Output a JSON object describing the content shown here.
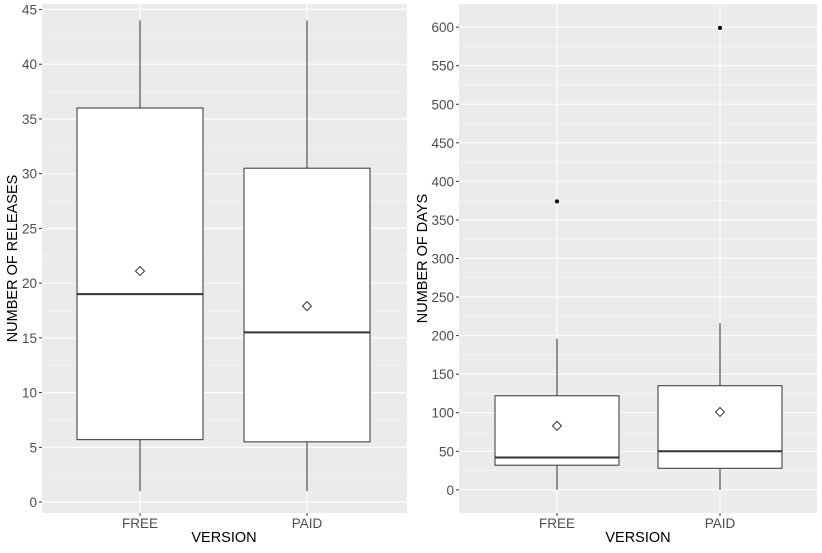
{
  "chart_data": [
    {
      "type": "boxplot",
      "xlabel": "VERSION",
      "ylabel": "NUMBER OF RELEASES",
      "ylim": [
        -1,
        45.5
      ],
      "yticks": [
        0,
        5,
        10,
        15,
        20,
        25,
        30,
        35,
        40,
        45
      ],
      "categories": [
        "FREE",
        "PAID"
      ],
      "boxes": [
        {
          "category": "FREE",
          "whisker_low": 1,
          "q1": 5.7,
          "median": 19,
          "q3": 36,
          "whisker_high": 44,
          "mean": 21.1,
          "outliers": []
        },
        {
          "category": "PAID",
          "whisker_low": 1,
          "q1": 5.5,
          "median": 15.5,
          "q3": 30.5,
          "whisker_high": 44,
          "mean": 17.9,
          "outliers": []
        }
      ],
      "grid": true
    },
    {
      "type": "boxplot",
      "xlabel": "VERSION",
      "ylabel": "NUMBER OF DAYS",
      "ylim": [
        -30,
        630
      ],
      "yticks": [
        0,
        50,
        100,
        150,
        200,
        250,
        300,
        350,
        400,
        450,
        500,
        550,
        600
      ],
      "categories": [
        "FREE",
        "PAID"
      ],
      "boxes": [
        {
          "category": "FREE",
          "whisker_low": 0,
          "q1": 32,
          "median": 42,
          "q3": 122,
          "whisker_high": 196,
          "mean": 83,
          "outliers": [
            374
          ]
        },
        {
          "category": "PAID",
          "whisker_low": 0,
          "q1": 28,
          "median": 50,
          "q3": 135,
          "whisker_high": 216,
          "mean": 101,
          "outliers": [
            599
          ]
        }
      ],
      "grid": true
    }
  ]
}
